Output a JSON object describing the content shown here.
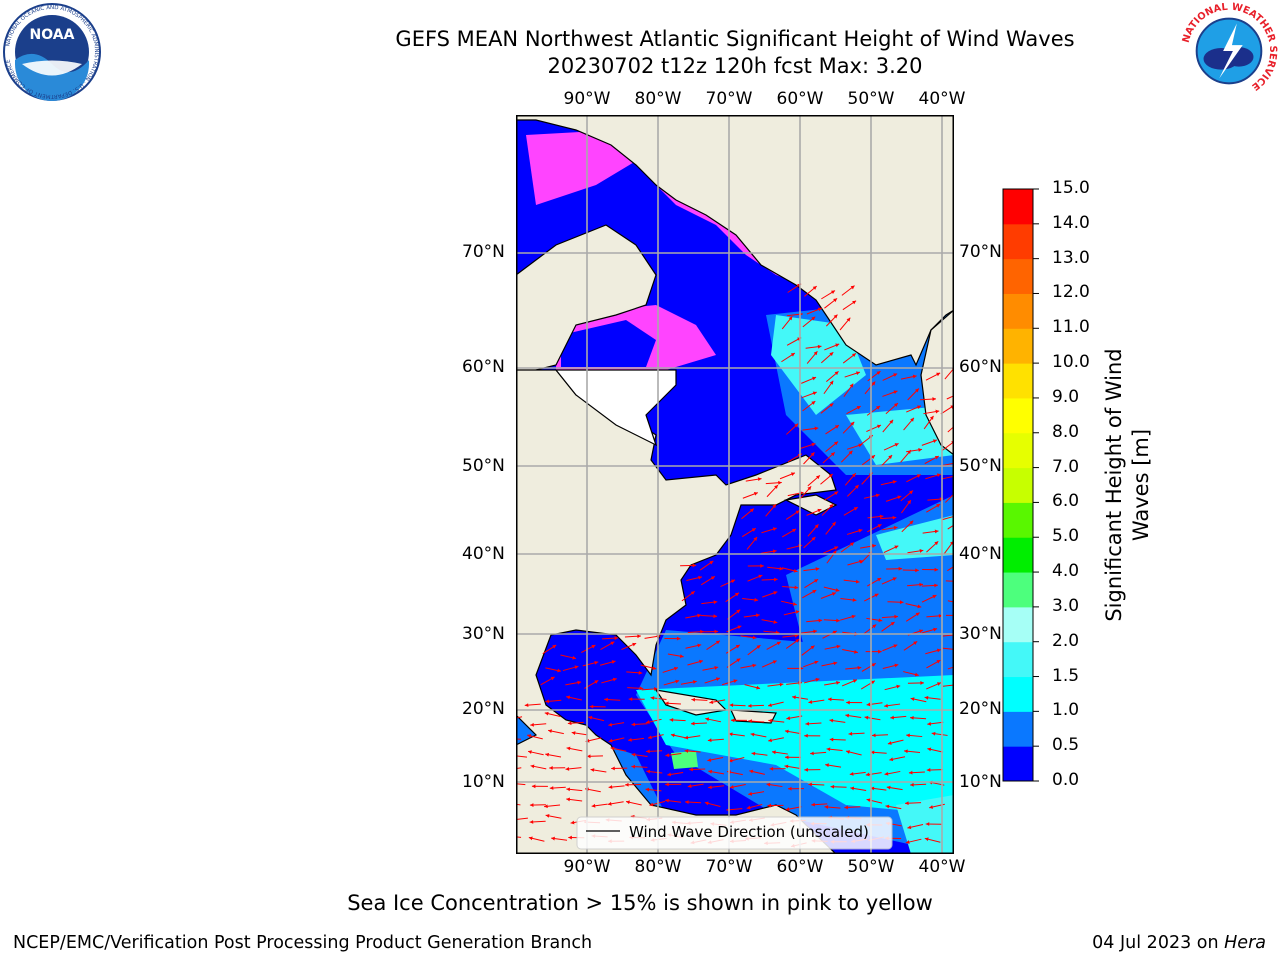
{
  "header": {
    "title_line1": "GEFS MEAN Northwest Atlantic Significant Height of Wind Waves",
    "title_line2": "20230702 t12z 120h fcst   Max: 3.20"
  },
  "logos": {
    "noaa_text": "NOAA",
    "noaa_ring_text": "NATIONAL OCEANIC AND ATMOSPHERIC ADMINISTRATION · U.S. DEPARTMENT OF COMMERCE",
    "nws_ring_text": "NATIONAL WEATHER SERVICE"
  },
  "map": {
    "lon_labels": [
      "90°W",
      "80°W",
      "70°W",
      "60°W",
      "50°W",
      "40°W"
    ],
    "lat_labels": [
      "70°N",
      "60°N",
      "50°N",
      "40°N",
      "30°N",
      "20°N",
      "10°N"
    ],
    "land_color": "#efedde",
    "ocean_low_color": "#0000ff",
    "legend_label": "Wind Wave Direction (unscaled)",
    "arrow_color": "#ff0000"
  },
  "colorbar": {
    "title": "Significant Height of Wind Waves [m]",
    "tick_labels": [
      "0.0",
      "0.5",
      "1.0",
      "1.5",
      "2.0",
      "3.0",
      "4.0",
      "5.0",
      "6.0",
      "7.0",
      "8.0",
      "9.0",
      "10.0",
      "11.0",
      "12.0",
      "13.0",
      "14.0",
      "15.0"
    ],
    "colors": [
      "#0000ff",
      "#0a78ff",
      "#00ffff",
      "#44f8f8",
      "#a6fff6",
      "#4dff7d",
      "#00ee00",
      "#59f700",
      "#c7ff00",
      "#e6ff00",
      "#ffff00",
      "#ffe100",
      "#ffb300",
      "#ff8c00",
      "#ff6400",
      "#ff3c00",
      "#ff0000"
    ]
  },
  "footer": {
    "note": "Sea Ice Concentration > 15% is shown in pink to yellow",
    "credit": "NCEP/EMC/Verification Post Processing Product Generation Branch",
    "date": "04 Jul 2023 on ",
    "machine": "Hera"
  }
}
